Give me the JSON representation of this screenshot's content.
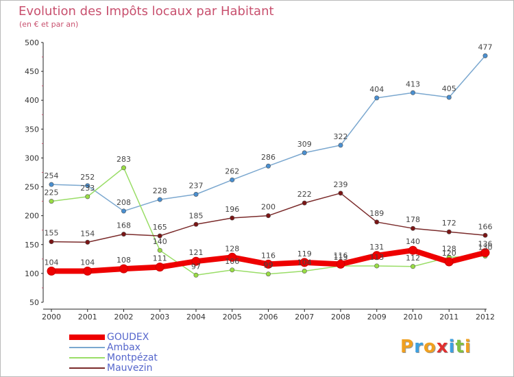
{
  "title": "Evolution des Impôts locaux par Habitant",
  "subtitle": "(en € et par an)",
  "brand": {
    "letters": [
      "P",
      "r",
      "o",
      "x",
      "i",
      "t",
      "i"
    ],
    "colors": [
      "#f0a020",
      "#3da0e0",
      "#f0a020",
      "#e03030",
      "#3da0e0",
      "#80c040",
      "#f0a020"
    ]
  },
  "chart_data": {
    "type": "line",
    "title": "Evolution des Impôts locaux par Habitant",
    "subtitle": "(en € et par an)",
    "x": [
      "2000",
      "2001",
      "2002",
      "2003",
      "2004",
      "2005",
      "2006",
      "2007",
      "2008",
      "2009",
      "2010",
      "2011",
      "2012"
    ],
    "ylim": [
      50,
      500
    ],
    "yticks": [
      "50",
      "100",
      "150",
      "200",
      "250",
      "300",
      "350",
      "400",
      "450",
      "500"
    ],
    "grid": false,
    "legend_position": "bottom-left",
    "series": [
      {
        "name": "GOUDEX",
        "color": "#ee0000",
        "width": 8,
        "values": [
          104,
          104,
          108,
          111,
          121,
          128,
          116,
          119,
          116,
          131,
          140,
          120,
          136
        ],
        "labels": [
          "104",
          "104",
          "108",
          "111",
          "121",
          "128",
          "116",
          "119",
          "116",
          "131",
          "140",
          "120",
          "136"
        ]
      },
      {
        "name": "Ambax",
        "color": "#7aa7cf",
        "width": 1.5,
        "values": [
          254,
          252,
          208,
          228,
          237,
          262,
          286,
          309,
          322,
          404,
          413,
          405,
          477
        ],
        "labels": [
          "254",
          "252",
          "208",
          "228",
          "237",
          "262",
          "286",
          "309",
          "322",
          "404",
          "413",
          "405",
          "477"
        ]
      },
      {
        "name": "Montpézat",
        "color": "#99dd66",
        "width": 1.5,
        "values": [
          225,
          233,
          283,
          140,
          97,
          106,
          99,
          104,
          113,
          113,
          112,
          128,
          130
        ],
        "labels": [
          "225",
          "233",
          "283",
          "140",
          "97",
          "106",
          "99",
          "104",
          "113",
          "113",
          "112",
          "128",
          "130"
        ]
      },
      {
        "name": "Mauvezin",
        "color": "#7a2a2a",
        "width": 1.5,
        "values": [
          155,
          154,
          168,
          165,
          185,
          196,
          200,
          222,
          239,
          189,
          178,
          172,
          166
        ],
        "labels": [
          "155",
          "154",
          "168",
          "165",
          "185",
          "196",
          "200",
          "222",
          "239",
          "189",
          "178",
          "172",
          "166"
        ]
      }
    ]
  }
}
